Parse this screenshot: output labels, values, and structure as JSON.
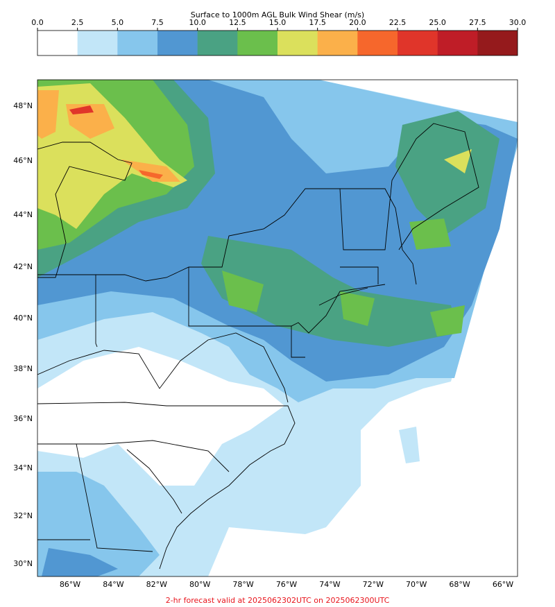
{
  "colorbar": {
    "title": "Surface to 1000m AGL Bulk Wind Shear (m/s)",
    "ticks": [
      "0.0",
      "2.5",
      "5.0",
      "7.5",
      "10.0",
      "12.5",
      "15.0",
      "17.5",
      "20.0",
      "22.5",
      "25.0",
      "27.5",
      "30.0"
    ],
    "colors": [
      "#ffffff",
      "#c2e6f8",
      "#86c6ec",
      "#5197d2",
      "#4aa283",
      "#6bbf4c",
      "#dbe05c",
      "#fbb04a",
      "#f6672c",
      "#e0352a",
      "#bf1d27",
      "#951a1c"
    ]
  },
  "map": {
    "lat_labels": [
      "48°N",
      "46°N",
      "44°N",
      "42°N",
      "40°N",
      "38°N",
      "36°N",
      "34°N",
      "32°N",
      "30°N"
    ],
    "lon_labels": [
      "86°W",
      "84°W",
      "82°W",
      "80°W",
      "78°W",
      "76°W",
      "74°W",
      "72°W",
      "70°W",
      "68°W",
      "66°W"
    ]
  },
  "footer": "2-hr forecast valid at 2025062302UTC on 2025062300UTC"
}
